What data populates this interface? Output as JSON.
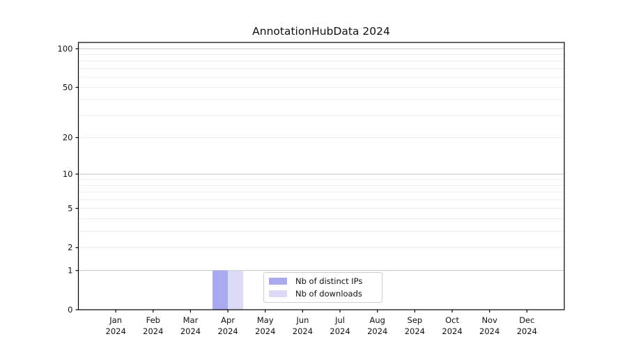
{
  "chart_data": {
    "type": "bar",
    "title": "AnnotationHubData 2024",
    "xlabel": "",
    "ylabel": "",
    "categories": [
      "Jan",
      "Feb",
      "Mar",
      "Apr",
      "May",
      "Jun",
      "Jul",
      "Aug",
      "Sep",
      "Oct",
      "Nov",
      "Dec"
    ],
    "category_year_label": "2024",
    "series": [
      {
        "name": "Nb of distinct IPs",
        "color": "#a9a9ef",
        "values": [
          0,
          0,
          0,
          1,
          0,
          0,
          0,
          0,
          0,
          0,
          0,
          0
        ]
      },
      {
        "name": "Nb of downloads",
        "color": "#dbdbf8",
        "values": [
          0,
          0,
          0,
          1,
          0,
          0,
          0,
          0,
          0,
          0,
          0,
          0
        ]
      }
    ],
    "y_scale": "log10(value+1), zero at baseline",
    "y_ticks": [
      0,
      1,
      2,
      5,
      10,
      20,
      50,
      100
    ],
    "ylim": [
      0,
      112
    ],
    "grid": {
      "on": true,
      "major_values": [
        1,
        10,
        100
      ],
      "minor_values": [
        2,
        3,
        4,
        5,
        6,
        7,
        8,
        9,
        20,
        30,
        40,
        50,
        60,
        70,
        80,
        90
      ],
      "major_color": "#c4c4c4",
      "minor_color": "#ececec"
    },
    "legend": {
      "position": "lower center",
      "border_color": "#cccccc",
      "items": [
        "Nb of distinct IPs",
        "Nb of downloads"
      ]
    },
    "axis_color": "#000000",
    "tick_label_color": "#111111",
    "background_color": "#ffffff"
  }
}
